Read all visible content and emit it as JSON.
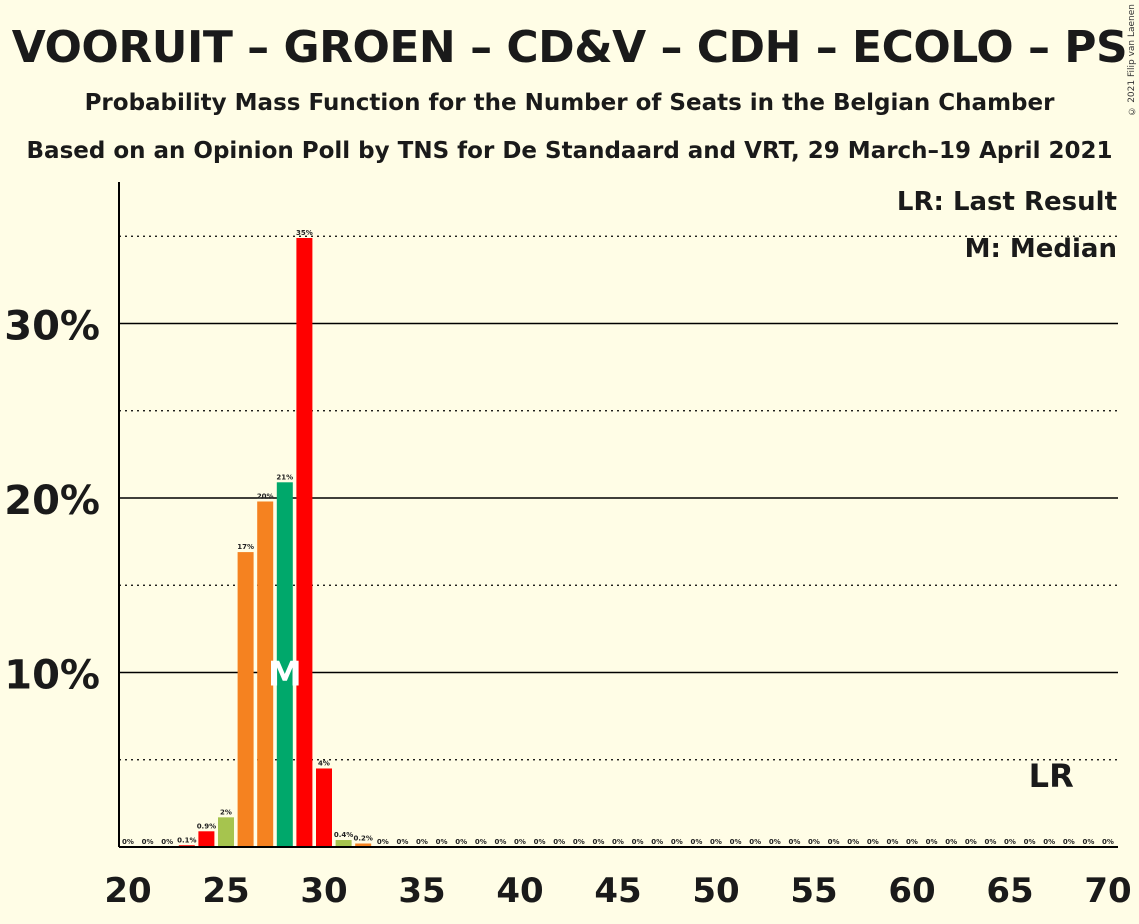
{
  "title": "VOORUIT – GROEN – CD&V – CDH – ECOLO – PS",
  "subtitle1": "Probability Mass Function for the Number of Seats in the Belgian Chamber",
  "subtitle2": "Based on an Opinion Poll by TNS for De Standaard and VRT, 29 March–19 April 2021",
  "copyright": "© 2021 Filip van Laenen",
  "legend": {
    "lr": "LR: Last Result",
    "median": "M: Median"
  },
  "markers": {
    "median_label": "M",
    "last_result_label": "LR",
    "median_seat": 28,
    "last_result_seat": 67
  },
  "colors": {
    "background": "#fffde6",
    "red": "#ff0000",
    "light_green": "#a6c44e",
    "orange": "#f58220",
    "green": "#00a86b"
  },
  "chart_data": {
    "type": "bar",
    "x": [
      20,
      21,
      22,
      23,
      24,
      25,
      26,
      27,
      28,
      29,
      30,
      31,
      32,
      33,
      34,
      35,
      36,
      37,
      38,
      39,
      40,
      41,
      42,
      43,
      44,
      45,
      46,
      47,
      48,
      49,
      50,
      51,
      52,
      53,
      54,
      55,
      56,
      57,
      58,
      59,
      60,
      61,
      62,
      63,
      64,
      65,
      66,
      67,
      68,
      69,
      70
    ],
    "values": [
      0,
      0,
      0,
      0.1,
      0.9,
      1.7,
      16.9,
      19.8,
      20.9,
      34.9,
      4.5,
      0.4,
      0.2,
      0,
      0,
      0,
      0,
      0,
      0,
      0,
      0,
      0,
      0,
      0,
      0,
      0,
      0,
      0,
      0,
      0,
      0,
      0,
      0,
      0,
      0,
      0,
      0,
      0,
      0,
      0,
      0,
      0,
      0,
      0,
      0,
      0,
      0,
      0,
      0,
      0,
      0
    ],
    "labels": [
      "0%",
      "0%",
      "0%",
      "0.1%",
      "0.9%",
      "2%",
      "17%",
      "20%",
      "21%",
      "35%",
      "4%",
      "0.4%",
      "0.2%",
      "0%",
      "0%",
      "0%",
      "0%",
      "0%",
      "0%",
      "0%",
      "0%",
      "0%",
      "0%",
      "0%",
      "0%",
      "0%",
      "0%",
      "0%",
      "0%",
      "0%",
      "0%",
      "0%",
      "0%",
      "0%",
      "0%",
      "0%",
      "0%",
      "0%",
      "0%",
      "0%",
      "0%",
      "0%",
      "0%",
      "0%",
      "0%",
      "0%",
      "0%",
      "0%",
      "0%",
      "0%",
      "0%"
    ],
    "bar_colors": [
      "#ff0000",
      "#ff0000",
      "#ff0000",
      "#ff0000",
      "#ff0000",
      "#a6c44e",
      "#f58220",
      "#f58220",
      "#00a86b",
      "#ff0000",
      "#ff0000",
      "#a6c44e",
      "#f58220",
      "#f58220",
      "#f58220",
      "#f58220",
      "#f58220",
      "#f58220",
      "#f58220",
      "#f58220",
      "#f58220",
      "#f58220",
      "#f58220",
      "#f58220",
      "#f58220",
      "#f58220",
      "#f58220",
      "#f58220",
      "#f58220",
      "#f58220",
      "#f58220",
      "#f58220",
      "#f58220",
      "#f58220",
      "#f58220",
      "#f58220",
      "#f58220",
      "#f58220",
      "#f58220",
      "#f58220",
      "#f58220",
      "#f58220",
      "#f58220",
      "#f58220",
      "#f58220",
      "#f58220",
      "#f58220",
      "#f58220",
      "#f58220",
      "#f58220",
      "#f58220"
    ],
    "xticks": [
      20,
      25,
      30,
      35,
      40,
      45,
      50,
      55,
      60,
      65,
      70
    ],
    "xtick_labels": [
      "20",
      "25",
      "30",
      "35",
      "40",
      "45",
      "50",
      "55",
      "60",
      "65",
      "70"
    ],
    "yticks": [
      10,
      20,
      30
    ],
    "ytick_labels": [
      "10%",
      "20%",
      "30%"
    ],
    "ydotted": [
      5,
      15,
      25,
      35
    ],
    "ylim": [
      0,
      38
    ],
    "xlim": [
      20,
      70
    ],
    "grid": true
  }
}
